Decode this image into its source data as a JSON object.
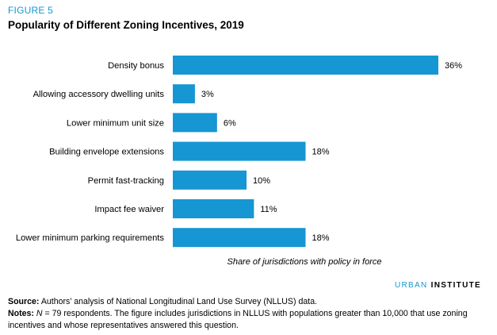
{
  "figure_label": "FIGURE 5",
  "title": "Popularity of Different Zoning Incentives, 2019",
  "brand": {
    "part1": "URBAN",
    "part2": "INSTITUTE"
  },
  "source": {
    "label": "Source:",
    "text": "Authors’ analysis of National Longitudinal Land Use Survey (NLLUS) data."
  },
  "notes": {
    "label": "Notes:",
    "n_symbol": "N",
    "text": " = 79 respondents. The figure includes jurisdictions in NLLUS with populations greater than 10,000 that use zoning incentives and whose representatives answered this question."
  },
  "chart_data": {
    "type": "bar",
    "orientation": "horizontal",
    "categories": [
      "Density bonus",
      "Allowing accessory dwelling units",
      "Lower minimum unit size",
      "Building envelope extensions",
      "Permit fast-tracking",
      "Impact fee waiver",
      "Lower minimum parking requirements"
    ],
    "values": [
      36,
      3,
      6,
      18,
      10,
      11,
      18
    ],
    "value_labels": [
      "36%",
      "3%",
      "6%",
      "18%",
      "10%",
      "11%",
      "18%"
    ],
    "xlabel": "Share of jurisdictions with policy in force",
    "ylabel": "",
    "xlim": [
      0,
      36
    ],
    "grid": false,
    "bar_color": "#1696d2"
  }
}
